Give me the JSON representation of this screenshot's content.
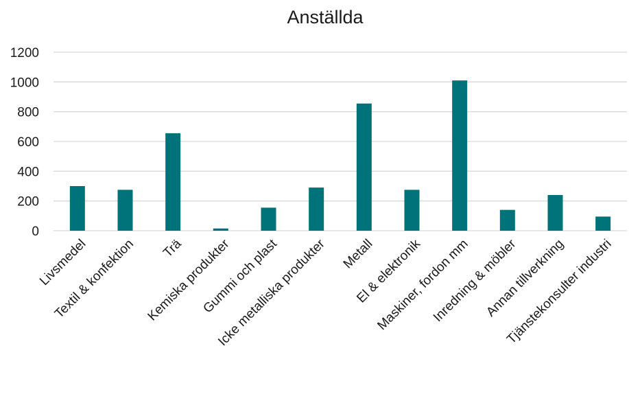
{
  "chart_data": {
    "type": "bar",
    "title": "Anställda",
    "xlabel": "",
    "ylabel": "",
    "categories": [
      "Livsmedel",
      "Textil & konfektion",
      "Trä",
      "Kemiska produkter",
      "Gummi och plast",
      "Icke metalliska produkter",
      "Metall",
      "El & elektronik",
      "Maskiner, fordon mm",
      "Inredning & möbler",
      "Annan tillverkning",
      "Tjänstekonsulter industri"
    ],
    "values": [
      300,
      275,
      655,
      15,
      155,
      290,
      855,
      275,
      1010,
      140,
      240,
      95
    ],
    "ylim": [
      0,
      1200
    ],
    "yticks": [
      0,
      200,
      400,
      600,
      800,
      1000,
      1200
    ],
    "grid": true,
    "legend": "none",
    "bar_color": "#00737a"
  }
}
